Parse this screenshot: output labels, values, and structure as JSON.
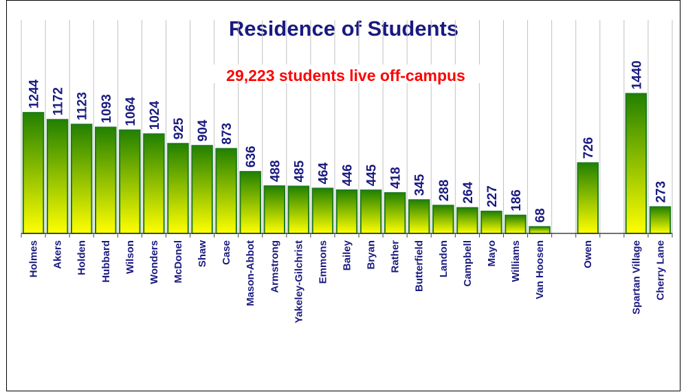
{
  "chart_data": {
    "type": "bar",
    "title": "Residence of Students",
    "annotation": "29,223 students live off-campus",
    "categories": [
      "Holmes",
      "Akers",
      "Holden",
      "Hubbard",
      "Wilson",
      "Wonders",
      "McDonel",
      "Shaw",
      "Case",
      "Mason-Abbot",
      "Armstrong",
      "Yakeley-Gilchrist",
      "Emmons",
      "Bailey",
      "Bryan",
      "Rather",
      "Butterfield",
      "Landon",
      "Campbell",
      "Mayo",
      "Williams",
      "Van Hoosen",
      null,
      "Owen",
      null,
      "Spartan Village",
      "Cherry Lane"
    ],
    "values": [
      1244,
      1172,
      1123,
      1093,
      1064,
      1024,
      925,
      904,
      873,
      636,
      488,
      485,
      464,
      446,
      445,
      418,
      345,
      288,
      264,
      227,
      186,
      68,
      null,
      726,
      null,
      1440,
      273
    ],
    "gradient": [
      "#228000",
      "#ffff00"
    ],
    "ylim": [
      0,
      2200
    ]
  }
}
